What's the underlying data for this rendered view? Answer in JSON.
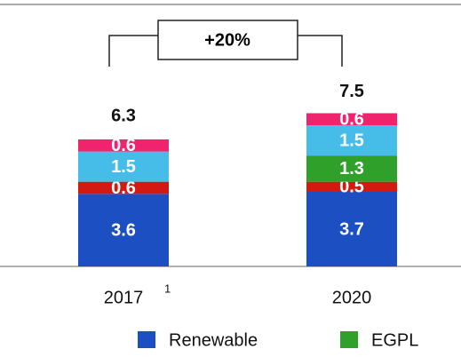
{
  "chart_data": {
    "type": "stacked_bar",
    "annotation": "+20%",
    "categories": [
      "2017",
      "2020"
    ],
    "category_notes": [
      "1",
      null
    ],
    "totals": [
      6.3,
      7.5
    ],
    "series": [
      {
        "name": "Renewable",
        "color": "#1c4fc2",
        "values": [
          3.6,
          3.7
        ]
      },
      {
        "color": "#d21a10",
        "values": [
          0.6,
          0.5
        ]
      },
      {
        "name": "EGPL",
        "color": "#2fa02a",
        "values": [
          null,
          1.3
        ]
      },
      {
        "color": "#45bde8",
        "values": [
          1.5,
          1.5
        ]
      },
      {
        "color": "#f0236d",
        "values": [
          0.6,
          0.6
        ]
      }
    ]
  }
}
